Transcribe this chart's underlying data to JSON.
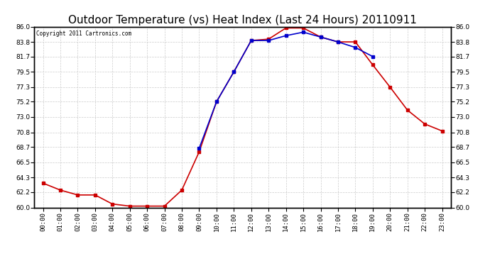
{
  "title": "Outdoor Temperature (vs) Heat Index (Last 24 Hours) 20110911",
  "copyright_text": "Copyright 2011 Cartronics.com",
  "x_labels": [
    "00:00",
    "01:00",
    "02:00",
    "03:00",
    "04:00",
    "05:00",
    "06:00",
    "07:00",
    "08:00",
    "09:00",
    "10:00",
    "11:00",
    "12:00",
    "13:00",
    "14:00",
    "15:00",
    "16:00",
    "17:00",
    "18:00",
    "19:00",
    "20:00",
    "21:00",
    "22:00",
    "23:00"
  ],
  "temp_data": [
    63.5,
    62.5,
    61.8,
    61.8,
    60.5,
    60.2,
    60.2,
    60.2,
    62.5,
    68.0,
    75.2,
    79.5,
    84.0,
    84.2,
    85.8,
    85.8,
    84.5,
    83.8,
    83.8,
    80.5,
    77.3,
    74.0,
    72.0,
    71.0
  ],
  "heat_index_data": [
    null,
    null,
    null,
    null,
    null,
    null,
    null,
    null,
    null,
    68.5,
    75.2,
    79.5,
    84.0,
    84.0,
    84.7,
    85.2,
    84.5,
    83.8,
    83.0,
    81.7,
    null,
    null,
    null,
    null
  ],
  "temp_color": "#cc0000",
  "heat_index_color": "#0000cc",
  "bg_color": "#ffffff",
  "grid_color": "#cccccc",
  "ylim_min": 60.0,
  "ylim_max": 86.0,
  "yticks": [
    60.0,
    62.2,
    64.3,
    66.5,
    68.7,
    70.8,
    73.0,
    75.2,
    77.3,
    79.5,
    81.7,
    83.8,
    86.0
  ],
  "title_fontsize": 11,
  "copyright_fontsize": 5.5,
  "marker_size": 3,
  "line_width": 1.2,
  "tick_fontsize": 6.5
}
